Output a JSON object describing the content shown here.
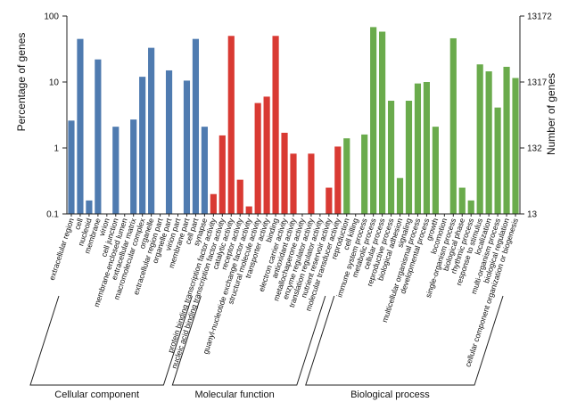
{
  "chart_data": {
    "type": "bar",
    "ylabel_left": "Percentage of genes",
    "ylabel_right": "Number of genes",
    "y_scale": "log",
    "ylim": [
      0.1,
      100
    ],
    "left_ticks": [
      {
        "value": 0.1,
        "label": "0.1"
      },
      {
        "value": 1,
        "label": "1"
      },
      {
        "value": 10,
        "label": "10"
      },
      {
        "value": 100,
        "label": "100"
      }
    ],
    "right_ticks": [
      {
        "value": 0.1,
        "label": "13"
      },
      {
        "value": 1,
        "label": "132"
      },
      {
        "value": 10,
        "label": "1317"
      },
      {
        "value": 100,
        "label": "13172"
      }
    ],
    "grid": false,
    "groups": [
      {
        "name": "Cellular component",
        "color": "#4f7bb0",
        "categories": [
          "extracellular region",
          "cell",
          "nucleoid",
          "membrane",
          "virion",
          "cell junction",
          "membrane-enclosed lumen",
          "extracellular matrix",
          "macromolecular complex",
          "organelle",
          "extracellular region part",
          "organelle part",
          "virion part",
          "membrane part",
          "cell part",
          "synapse"
        ],
        "values": [
          2.6,
          45,
          0.16,
          22,
          0.1,
          2.1,
          0.1,
          2.7,
          12,
          33,
          0.1,
          15,
          0.1,
          10.5,
          45,
          2.1
        ]
      },
      {
        "name": "Molecular function",
        "color": "#d93a33",
        "categories": [
          "protein binding transcription factor activity",
          "nucleic acid binding transcription factor activity",
          "catalytic activity",
          "receptor activity",
          "guanyl-nucleotide exchange factor activity",
          "structural molecule activity",
          "transporter activity",
          "binding",
          "electron carrier activity",
          "antioxidant activity",
          "metallochaperone activity",
          "enzyme regulator activity",
          "translation regulator activity",
          "nutrient reservoir activity",
          "molecular transducer activity"
        ],
        "values": [
          0.2,
          1.55,
          50,
          0.33,
          0.13,
          4.8,
          6.0,
          50,
          1.7,
          0.82,
          0.1,
          0.82,
          0.1,
          0.25,
          1.05
        ]
      },
      {
        "name": "Biological process",
        "color": "#6aab4c",
        "categories": [
          "reproduction",
          "cell killing",
          "immune system process",
          "metabolic process",
          "cellular process",
          "reproductive process",
          "biological adhesion",
          "signaling",
          "multicellular organismal process",
          "developmental process",
          "growth",
          "locomotion",
          "single-organism process",
          "biological phase",
          "rhythmic process",
          "response to stimulus",
          "localization",
          "multi-organism process",
          "biological regulation",
          "cellular component organization or biogenesis"
        ],
        "values": [
          1.4,
          0.1,
          1.6,
          68,
          58,
          5.2,
          0.35,
          5.2,
          9.5,
          10,
          2.1,
          0.1,
          46,
          0.25,
          0.16,
          18.5,
          14.5,
          4.1,
          17,
          11.5
        ]
      }
    ]
  }
}
